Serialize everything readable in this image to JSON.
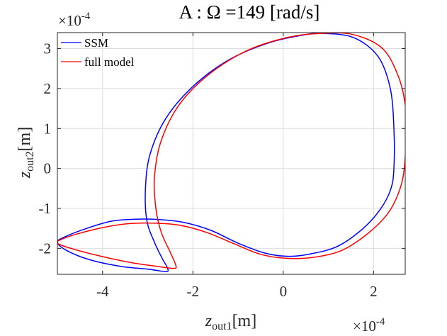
{
  "chart_data": {
    "type": "line",
    "title": "A : Ω =149 [rad/s]",
    "xlabel": {
      "main": "z",
      "sub": "out1",
      "unit": "[m]"
    },
    "ylabel": {
      "main": "z",
      "sub": "out2",
      "unit": "[m]"
    },
    "x_exponent": {
      "base": "×10",
      "power": "-4"
    },
    "y_exponent": {
      "base": "×10",
      "power": "-4"
    },
    "xlim": [
      -5.0,
      2.7
    ],
    "ylim": [
      -2.65,
      3.4
    ],
    "x_ticks": [
      -4,
      -2,
      0,
      2
    ],
    "x_tick_labels": [
      "-4",
      "-2",
      "0",
      "2"
    ],
    "y_ticks": [
      -2,
      -1,
      0,
      1,
      2,
      3
    ],
    "y_tick_labels": [
      "-2",
      "-1",
      "0",
      "1",
      "2",
      "3"
    ],
    "grid": true,
    "legend_position": "top-left",
    "series": [
      {
        "name": "SSM",
        "color": "#0000ff",
        "points": [
          [
            2.45,
            0.0
          ],
          [
            2.38,
            -0.52
          ],
          [
            2.15,
            -1.02
          ],
          [
            1.75,
            -1.52
          ],
          [
            1.2,
            -1.95
          ],
          [
            0.6,
            -2.14
          ],
          [
            0.12,
            -2.2
          ],
          [
            -0.4,
            -2.12
          ],
          [
            -1.0,
            -1.87
          ],
          [
            -1.6,
            -1.55
          ],
          [
            -2.2,
            -1.35
          ],
          [
            -2.75,
            -1.28
          ],
          [
            -3.25,
            -1.27
          ],
          [
            -3.8,
            -1.32
          ],
          [
            -4.35,
            -1.5
          ],
          [
            -4.85,
            -1.72
          ],
          [
            -5.0,
            -1.85
          ],
          [
            -4.8,
            -2.05
          ],
          [
            -4.3,
            -2.28
          ],
          [
            -3.6,
            -2.45
          ],
          [
            -3.0,
            -2.52
          ],
          [
            -2.6,
            -2.58
          ],
          [
            -2.56,
            -2.5
          ],
          [
            -2.68,
            -2.25
          ],
          [
            -2.85,
            -1.85
          ],
          [
            -3.02,
            -1.3
          ],
          [
            -3.05,
            -0.5
          ],
          [
            -2.95,
            0.35
          ],
          [
            -2.6,
            1.25
          ],
          [
            -2.0,
            2.05
          ],
          [
            -1.2,
            2.72
          ],
          [
            -0.3,
            3.15
          ],
          [
            0.5,
            3.35
          ],
          [
            0.85,
            3.38
          ],
          [
            1.55,
            3.28
          ],
          [
            2.1,
            2.8
          ],
          [
            2.37,
            2.0
          ],
          [
            2.45,
            1.0
          ],
          [
            2.45,
            0.0
          ]
        ]
      },
      {
        "name": "full model",
        "color": "#ff0000",
        "points": [
          [
            2.72,
            1.0
          ],
          [
            2.68,
            0.0
          ],
          [
            2.55,
            -0.62
          ],
          [
            2.3,
            -1.15
          ],
          [
            1.85,
            -1.65
          ],
          [
            1.3,
            -2.05
          ],
          [
            0.7,
            -2.22
          ],
          [
            0.1,
            -2.25
          ],
          [
            -0.5,
            -2.15
          ],
          [
            -1.1,
            -1.88
          ],
          [
            -1.7,
            -1.6
          ],
          [
            -2.3,
            -1.42
          ],
          [
            -2.85,
            -1.37
          ],
          [
            -3.4,
            -1.38
          ],
          [
            -3.95,
            -1.47
          ],
          [
            -4.5,
            -1.62
          ],
          [
            -4.9,
            -1.77
          ],
          [
            -5.0,
            -1.87
          ],
          [
            -4.7,
            -2.0
          ],
          [
            -4.1,
            -2.18
          ],
          [
            -3.4,
            -2.35
          ],
          [
            -2.8,
            -2.45
          ],
          [
            -2.42,
            -2.5
          ],
          [
            -2.38,
            -2.42
          ],
          [
            -2.5,
            -2.1
          ],
          [
            -2.7,
            -1.6
          ],
          [
            -2.82,
            -1.0
          ],
          [
            -2.85,
            -0.2
          ],
          [
            -2.7,
            0.7
          ],
          [
            -2.3,
            1.6
          ],
          [
            -1.65,
            2.35
          ],
          [
            -0.8,
            2.95
          ],
          [
            0.1,
            3.28
          ],
          [
            0.85,
            3.38
          ],
          [
            1.55,
            3.35
          ],
          [
            2.2,
            3.0
          ],
          [
            2.55,
            2.3
          ],
          [
            2.7,
            1.6
          ],
          [
            2.72,
            1.0
          ]
        ]
      }
    ]
  }
}
